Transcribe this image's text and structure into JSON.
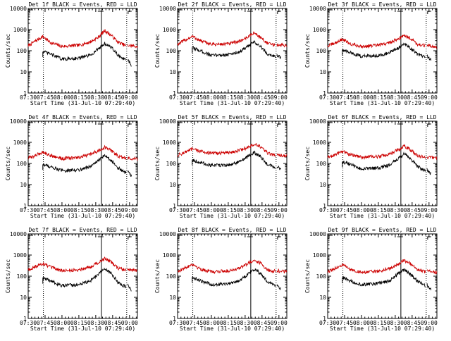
{
  "colors": {
    "events": "#000000",
    "lld": "#cc0000",
    "axis": "#000000",
    "background": "#ffffff"
  },
  "chart_data": [
    {
      "type": "line",
      "title": "Det 1f BLACK = Events, RED = LLD",
      "ylabel": "Counts/sec",
      "xlabel": "Start Time (31-Jul-10 07:29:40)",
      "x_unit": "minutes after 07:30",
      "ylim": [
        1,
        10000
      ],
      "yscale": "log",
      "xlim": [
        0,
        97
      ],
      "xticks": [
        "07:30",
        "07:45",
        "08:00",
        "08:15",
        "08:30",
        "08:45",
        "09:00"
      ],
      "yticks": [
        "1",
        "10",
        "100",
        "1000",
        "10000"
      ],
      "markers": {
        "dotted": [
          13.5,
          87.5
        ],
        "solid": [
          65
        ]
      },
      "series": [
        {
          "name": "LLD",
          "color": "#cc0000",
          "x": [
            0,
            6,
            13,
            20,
            30,
            45,
            55,
            62,
            68,
            74,
            80,
            87,
            88,
            97
          ],
          "y": [
            170,
            280,
            470,
            240,
            160,
            180,
            260,
            420,
            900,
            520,
            250,
            170,
            180,
            160
          ]
        },
        {
          "name": "Events",
          "color": "#000000",
          "x": [
            13,
            20,
            30,
            45,
            55,
            62,
            68,
            74,
            80,
            87,
            88,
            92
          ],
          "y": [
            90,
            70,
            40,
            45,
            60,
            120,
            220,
            140,
            60,
            35,
            40,
            18
          ]
        }
      ]
    },
    {
      "type": "line",
      "title": "Det 2f BLACK = Events, RED = LLD",
      "ylabel": "Counts/sec",
      "xlabel": "Start Time (31-Jul-10 07:29:40)",
      "x_unit": "minutes after 07:30",
      "ylim": [
        1,
        10000
      ],
      "yscale": "log",
      "xlim": [
        0,
        97
      ],
      "xticks": [
        "07:30",
        "07:45",
        "08:00",
        "08:15",
        "08:30",
        "08:45",
        "09:00"
      ],
      "yticks": [
        "1",
        "10",
        "100",
        "1000",
        "10000"
      ],
      "markers": {
        "dotted": [
          13.5,
          87.5
        ],
        "solid": [
          65
        ]
      },
      "series": [
        {
          "name": "LLD",
          "color": "#cc0000",
          "x": [
            0,
            6,
            13,
            20,
            30,
            45,
            55,
            62,
            68,
            74,
            80,
            87,
            88,
            97
          ],
          "y": [
            200,
            300,
            480,
            300,
            200,
            210,
            280,
            440,
            700,
            420,
            220,
            180,
            190,
            180
          ]
        },
        {
          "name": "Events",
          "color": "#000000",
          "x": [
            13,
            20,
            30,
            45,
            55,
            62,
            68,
            74,
            80,
            87,
            88,
            92
          ],
          "y": [
            140,
            100,
            60,
            65,
            90,
            150,
            260,
            150,
            70,
            55,
            60,
            45
          ]
        }
      ]
    },
    {
      "type": "line",
      "title": "Det 3f BLACK = Events, RED = LLD",
      "ylabel": "Counts/sec",
      "xlabel": "Start Time (31-Jul-10 07:29:40)",
      "x_unit": "minutes after 07:30",
      "ylim": [
        1,
        10000
      ],
      "yscale": "log",
      "xlim": [
        0,
        97
      ],
      "xticks": [
        "07:30",
        "07:45",
        "08:00",
        "08:15",
        "08:30",
        "08:45",
        "09:00"
      ],
      "yticks": [
        "1",
        "10",
        "100",
        "1000",
        "10000"
      ],
      "markers": {
        "dotted": [
          13.5,
          87.5
        ],
        "solid": [
          65
        ]
      },
      "series": [
        {
          "name": "LLD",
          "color": "#cc0000",
          "x": [
            0,
            6,
            13,
            20,
            30,
            45,
            55,
            62,
            68,
            74,
            80,
            87,
            88,
            97
          ],
          "y": [
            170,
            220,
            350,
            210,
            160,
            180,
            240,
            360,
            520,
            380,
            200,
            170,
            180,
            150
          ]
        },
        {
          "name": "Events",
          "color": "#000000",
          "x": [
            13,
            20,
            30,
            45,
            55,
            62,
            68,
            74,
            80,
            87,
            88,
            92
          ],
          "y": [
            110,
            80,
            55,
            60,
            80,
            130,
            200,
            130,
            65,
            50,
            55,
            35
          ]
        }
      ]
    },
    {
      "type": "line",
      "title": "Det 4f BLACK = Events, RED = LLD",
      "ylabel": "Counts/sec",
      "xlabel": "Start Time (31-Jul-10 07:29:40)",
      "x_unit": "minutes after 07:30",
      "ylim": [
        1,
        10000
      ],
      "yscale": "log",
      "xlim": [
        0,
        97
      ],
      "xticks": [
        "07:30",
        "07:45",
        "08:00",
        "08:15",
        "08:30",
        "08:45",
        "09:00"
      ],
      "yticks": [
        "1",
        "10",
        "100",
        "1000",
        "10000"
      ],
      "markers": {
        "dotted": [
          13.5,
          87.5
        ],
        "solid": [
          65
        ]
      },
      "series": [
        {
          "name": "LLD",
          "color": "#cc0000",
          "x": [
            0,
            6,
            13,
            20,
            30,
            45,
            55,
            62,
            68,
            74,
            80,
            87,
            88,
            97
          ],
          "y": [
            180,
            230,
            350,
            240,
            170,
            190,
            260,
            390,
            580,
            400,
            220,
            170,
            180,
            160
          ]
        },
        {
          "name": "Events",
          "color": "#000000",
          "x": [
            13,
            20,
            30,
            45,
            55,
            62,
            68,
            74,
            80,
            87,
            88,
            92
          ],
          "y": [
            90,
            70,
            45,
            50,
            70,
            130,
            250,
            140,
            60,
            35,
            45,
            25
          ]
        }
      ]
    },
    {
      "type": "line",
      "title": "Det 5f BLACK = Events, RED = LLD",
      "ylabel": "Counts/sec",
      "xlabel": "Start Time (31-Jul-10 07:29:40)",
      "x_unit": "minutes after 07:30",
      "ylim": [
        1,
        10000
      ],
      "yscale": "log",
      "xlim": [
        0,
        97
      ],
      "xticks": [
        "07:30",
        "07:45",
        "08:00",
        "08:15",
        "08:30",
        "08:45",
        "09:00"
      ],
      "yticks": [
        "1",
        "10",
        "100",
        "1000",
        "10000"
      ],
      "markers": {
        "dotted": [
          13.5,
          87.5
        ],
        "solid": [
          65
        ]
      },
      "series": [
        {
          "name": "LLD",
          "color": "#cc0000",
          "x": [
            0,
            6,
            13,
            20,
            30,
            45,
            55,
            62,
            68,
            74,
            80,
            87,
            88,
            97
          ],
          "y": [
            240,
            330,
            480,
            380,
            300,
            320,
            420,
            560,
            800,
            600,
            300,
            240,
            250,
            230
          ]
        },
        {
          "name": "Events",
          "color": "#000000",
          "x": [
            13,
            20,
            30,
            45,
            55,
            62,
            68,
            74,
            80,
            87,
            88,
            92
          ],
          "y": [
            150,
            110,
            80,
            85,
            120,
            200,
            330,
            200,
            90,
            60,
            70,
            55
          ]
        }
      ]
    },
    {
      "type": "line",
      "title": "Det 6f BLACK = Events, RED = LLD",
      "ylabel": "Counts/sec",
      "xlabel": "Start Time (31-Jul-10 07:29:40)",
      "x_unit": "minutes after 07:30",
      "ylim": [
        1,
        10000
      ],
      "yscale": "log",
      "xlim": [
        0,
        97
      ],
      "xticks": [
        "07:30",
        "07:45",
        "08:00",
        "08:15",
        "08:30",
        "08:45",
        "09:00"
      ],
      "yticks": [
        "1",
        "10",
        "100",
        "1000",
        "10000"
      ],
      "markers": {
        "dotted": [
          13.5,
          87.5
        ],
        "solid": [
          65
        ]
      },
      "series": [
        {
          "name": "LLD",
          "color": "#cc0000",
          "x": [
            0,
            6,
            13,
            20,
            30,
            45,
            55,
            62,
            68,
            74,
            80,
            87,
            88,
            97
          ],
          "y": [
            190,
            250,
            380,
            260,
            200,
            210,
            280,
            420,
            650,
            430,
            230,
            190,
            200,
            180
          ]
        },
        {
          "name": "Events",
          "color": "#000000",
          "x": [
            13,
            20,
            30,
            45,
            55,
            62,
            68,
            74,
            80,
            87,
            88,
            92
          ],
          "y": [
            120,
            90,
            55,
            60,
            85,
            160,
            280,
            160,
            70,
            45,
            55,
            30
          ]
        }
      ]
    },
    {
      "type": "line",
      "title": "Det 7f BLACK = Events, RED = LLD",
      "ylabel": "Counts/sec",
      "xlabel": "Start Time (31-Jul-10 07:29:40)",
      "x_unit": "minutes after 07:30",
      "ylim": [
        1,
        10000
      ],
      "yscale": "log",
      "xlim": [
        0,
        97
      ],
      "xticks": [
        "07:30",
        "07:45",
        "08:00",
        "08:15",
        "08:30",
        "08:45",
        "09:00"
      ],
      "yticks": [
        "1",
        "10",
        "100",
        "1000",
        "10000"
      ],
      "markers": {
        "dotted": [
          13.5,
          87.5
        ],
        "solid": [
          65
        ]
      },
      "series": [
        {
          "name": "LLD",
          "color": "#cc0000",
          "x": [
            0,
            6,
            13,
            20,
            30,
            45,
            55,
            62,
            68,
            74,
            80,
            87,
            88,
            97
          ],
          "y": [
            200,
            280,
            400,
            260,
            180,
            200,
            280,
            430,
            700,
            450,
            240,
            190,
            200,
            180
          ]
        },
        {
          "name": "Events",
          "color": "#000000",
          "x": [
            13,
            20,
            30,
            45,
            55,
            62,
            68,
            74,
            80,
            87,
            88,
            92
          ],
          "y": [
            80,
            60,
            35,
            40,
            60,
            120,
            230,
            130,
            50,
            30,
            40,
            20
          ]
        }
      ]
    },
    {
      "type": "line",
      "title": "Det 8f BLACK = Events, RED = LLD",
      "ylabel": "Counts/sec",
      "xlabel": "Start Time (31-Jul-10 07:29:40)",
      "x_unit": "minutes after 07:30",
      "ylim": [
        1,
        10000
      ],
      "yscale": "log",
      "xlim": [
        0,
        97
      ],
      "xticks": [
        "07:30",
        "07:45",
        "08:00",
        "08:15",
        "08:30",
        "08:45",
        "09:00"
      ],
      "yticks": [
        "1",
        "10",
        "100",
        "1000",
        "10000"
      ],
      "markers": {
        "dotted": [
          13.5,
          87.5
        ],
        "solid": [
          65
        ]
      },
      "series": [
        {
          "name": "LLD",
          "color": "#cc0000",
          "x": [
            0,
            6,
            13,
            20,
            30,
            45,
            55,
            62,
            68,
            74,
            80,
            87,
            88,
            97
          ],
          "y": [
            170,
            230,
            380,
            220,
            160,
            180,
            240,
            380,
            600,
            400,
            200,
            170,
            180,
            160
          ]
        },
        {
          "name": "Events",
          "color": "#000000",
          "x": [
            13,
            20,
            30,
            45,
            55,
            62,
            68,
            74,
            80,
            87,
            88,
            92
          ],
          "y": [
            90,
            60,
            40,
            45,
            60,
            120,
            220,
            130,
            55,
            35,
            40,
            25
          ]
        }
      ]
    },
    {
      "type": "line",
      "title": "Det 9f BLACK = Events, RED = LLD",
      "ylabel": "Counts/sec",
      "xlabel": "Start Time (31-Jul-10 07:29:40)",
      "x_unit": "minutes after 07:30",
      "ylim": [
        1,
        10000
      ],
      "yscale": "log",
      "xlim": [
        0,
        97
      ],
      "xticks": [
        "07:30",
        "07:45",
        "08:00",
        "08:15",
        "08:30",
        "08:45",
        "09:00"
      ],
      "yticks": [
        "1",
        "10",
        "100",
        "1000",
        "10000"
      ],
      "markers": {
        "dotted": [
          13.5,
          87.5
        ],
        "solid": [
          65
        ]
      },
      "series": [
        {
          "name": "LLD",
          "color": "#cc0000",
          "x": [
            0,
            6,
            13,
            20,
            30,
            45,
            55,
            62,
            68,
            74,
            80,
            87,
            88,
            97
          ],
          "y": [
            160,
            220,
            350,
            210,
            150,
            170,
            230,
            360,
            560,
            380,
            190,
            160,
            170,
            150
          ]
        },
        {
          "name": "Events",
          "color": "#000000",
          "x": [
            13,
            20,
            30,
            45,
            55,
            62,
            68,
            74,
            80,
            87,
            88,
            92
          ],
          "y": [
            85,
            60,
            40,
            45,
            60,
            120,
            210,
            120,
            55,
            35,
            40,
            22
          ]
        }
      ]
    }
  ]
}
